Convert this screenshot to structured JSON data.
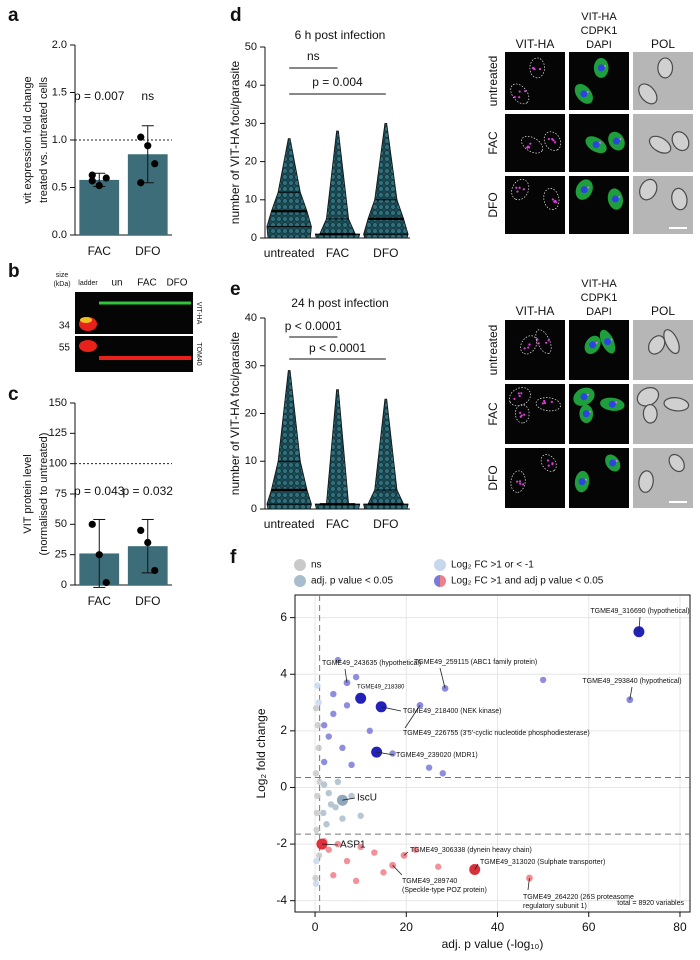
{
  "chart_data": [
    {
      "panel": "a",
      "type": "bar",
      "ylabel": [
        "vit expression fold change",
        "treated vs. untreated cells"
      ],
      "categories": [
        "FAC",
        "DFO"
      ],
      "values": [
        0.58,
        0.85
      ],
      "errors": [
        0.07,
        0.3
      ],
      "points": [
        [
          0.57,
          0.52,
          0.6,
          0.63
        ],
        [
          1.03,
          0.94,
          0.75,
          0.55
        ]
      ],
      "color": "#3d6d79",
      "ylim": [
        0,
        2
      ],
      "yticks": [
        {
          "value": 0,
          "label": "0.0"
        },
        {
          "value": 0.5,
          "label": "0.5"
        },
        {
          "value": 1,
          "label": "1.0"
        },
        {
          "value": 1.5,
          "label": "1.5"
        },
        {
          "value": 2,
          "label": "2.0"
        }
      ],
      "reference_line": 1,
      "annotations": [
        "p = 0.007",
        "ns"
      ]
    },
    {
      "panel": "b",
      "type": "blot",
      "size_label": [
        "size",
        "(kDa)"
      ],
      "lanes": [
        "ladder",
        "un",
        "FAC",
        "DFO"
      ],
      "markers": [
        "34",
        "55"
      ],
      "bands": [
        "VIT-HA",
        "TOM40"
      ]
    },
    {
      "panel": "c",
      "type": "bar",
      "ylabel": [
        "VIT protein level",
        "(normalised to untreated)"
      ],
      "categories": [
        "FAC",
        "DFO"
      ],
      "values": [
        26,
        32
      ],
      "errors": [
        28,
        22
      ],
      "points": [
        [
          50,
          25,
          2
        ],
        [
          45,
          35,
          12
        ]
      ],
      "color": "#3d6d79",
      "ylim": [
        0,
        150
      ],
      "yticks": [
        0,
        25,
        50,
        75,
        100,
        125,
        150
      ],
      "reference_line": 100,
      "annotations": [
        "p = 0.043",
        "p = 0.032"
      ]
    },
    {
      "panel": "d",
      "type": "violin",
      "title": "6 h post infection",
      "ylabel": "number of VIT-HA foci/parasite",
      "categories": [
        "untreated",
        "FAC",
        "DFO"
      ],
      "stats": [
        {
          "min": 0,
          "q1": 3,
          "median": 7,
          "q3": 12,
          "max": 26
        },
        {
          "min": 0,
          "q1": 1,
          "median": 1,
          "q3": 5,
          "max": 28
        },
        {
          "min": 0,
          "q1": 1,
          "median": 5,
          "q3": 10,
          "max": 30
        }
      ],
      "color": "#2f6f7c",
      "ylim": [
        0,
        50
      ],
      "yticks": [
        0,
        10,
        20,
        30,
        40,
        50
      ],
      "comparisons": [
        {
          "pair": [
            0,
            1
          ],
          "label": "ns"
        },
        {
          "pair": [
            0,
            2
          ],
          "label": "p = 0.004"
        }
      ],
      "image_columns": [
        "VIT-HA",
        null,
        "POL"
      ],
      "merge_channels": [
        {
          "name": "VIT-HA",
          "color": "#e03ce0"
        },
        {
          "name": "CDPK1",
          "color": "#22c84a"
        },
        {
          "name": "DAPI",
          "color": "#2a3ee0"
        }
      ],
      "image_rows": [
        "untreated",
        "FAC",
        "DFO"
      ]
    },
    {
      "panel": "e",
      "type": "violin",
      "title": "24 h post infection",
      "ylabel": "number of VIT-HA foci/parasite",
      "categories": [
        "untreated",
        "FAC",
        "DFO"
      ],
      "stats": [
        {
          "min": 0,
          "q1": 1,
          "median": 4,
          "q3": 10,
          "max": 29
        },
        {
          "min": 0,
          "q1": 1,
          "median": 1,
          "q3": 1,
          "max": 25
        },
        {
          "min": 0,
          "q1": 1,
          "median": 1,
          "q3": 4,
          "max": 23
        }
      ],
      "color": "#2f6f7c",
      "ylim": [
        0,
        40
      ],
      "yticks": [
        0,
        10,
        20,
        30,
        40
      ],
      "comparisons": [
        {
          "pair": [
            0,
            1
          ],
          "label": "p < 0.0001"
        },
        {
          "pair": [
            0,
            2
          ],
          "label": "p < 0.0001"
        }
      ],
      "image_columns": [
        "VIT-HA",
        null,
        "POL"
      ],
      "merge_channels": [
        {
          "name": "VIT-HA",
          "color": "#e03ce0"
        },
        {
          "name": "CDPK1",
          "color": "#22c84a"
        },
        {
          "name": "DAPI",
          "color": "#2a3ee0"
        }
      ],
      "image_rows": [
        "untreated",
        "FAC",
        "DFO"
      ]
    },
    {
      "panel": "f",
      "type": "scatter",
      "xlabel": "adj. p value (-log₁₀)",
      "ylabel": "Log₂ fold change",
      "note": "total = 8920 variables",
      "xlim": [
        -4.4,
        82.2
      ],
      "ylim": [
        -4.4,
        6.8
      ],
      "xticks": [
        0,
        20,
        40,
        60,
        80
      ],
      "yticks": [
        -4,
        -2,
        0,
        2,
        4,
        6
      ],
      "grid": true,
      "hlines": [
        0.35,
        -1.65
      ],
      "vline": 1,
      "series": [
        {
          "name": "ns",
          "color": "#c9c9c9",
          "x": [
            0.2,
            0.5,
            0.8,
            0.3,
            1,
            0.1,
            0.6,
            0.4,
            0.9,
            0.2
          ],
          "values": [
            0.5,
            -0.3,
            1.4,
            -1.5,
            0.2,
            -3.2,
            2.2,
            -0.9,
            -2.4,
            2.8
          ]
        },
        {
          "name": "adj. p value < 0.05",
          "color": "#a9bccb",
          "x": [
            2,
            3,
            4.5,
            6,
            2.5,
            8,
            3.5,
            1.8,
            5,
            10
          ],
          "values": [
            0.1,
            -0.2,
            -0.7,
            -1.1,
            -1.3,
            -0.3,
            -0.6,
            -0.9,
            0.2,
            -1.0
          ]
        },
        {
          "name": "Log₂ FC >1 or < -1",
          "color": "#c6d7ee",
          "x": [
            0.5,
            0.3,
            0.8,
            0.2
          ],
          "values": [
            3.6,
            -2.6,
            3.0,
            -3.4
          ]
        },
        {
          "name": "Log₂ FC >1 and adj p value < 0.05",
          "colors": [
            "#7a7ad9",
            "#f07f86"
          ],
          "x": [
            2,
            3,
            4,
            5,
            6,
            8,
            9,
            12,
            17,
            25,
            28,
            50,
            4,
            2,
            7,
            2,
            3,
            5,
            7,
            10,
            13,
            15,
            22,
            27,
            4,
            9
          ],
          "values": [
            0.9,
            1.8,
            2.6,
            4.5,
            1.4,
            0.8,
            3.9,
            2.0,
            1.2,
            0.7,
            0.5,
            3.8,
            3.3,
            2.2,
            2.9,
            -1.9,
            -2.2,
            -2.0,
            -2.6,
            -2.1,
            -2.3,
            -3.0,
            -2.2,
            -2.8,
            -3.1,
            -3.3
          ]
        }
      ],
      "labeled": [
        {
          "label": "TGME49_316690 (hypothetical)",
          "x": 71,
          "y": 5.5,
          "color": "#2222b8",
          "size": "large"
        },
        {
          "label": "TGME49_293840 (hypothetical)",
          "x": 69,
          "y": 3.1,
          "color": "#8a8ae0",
          "size": "small"
        },
        {
          "label": "TGME49_259115 (ABC1 family protein)",
          "x": 28.5,
          "y": 3.5,
          "color": "#8a8ae0",
          "size": "small"
        },
        {
          "label": "TGME49_243635 (hypothetical)",
          "x": 7,
          "y": 3.7,
          "color": "#8a8ae0",
          "size": "small"
        },
        {
          "label": "TGME49_218380",
          "x": 10,
          "y": 3.15,
          "color": "#2222b8",
          "size": "large"
        },
        {
          "label": "TGME49_218400 (NEK kinase)",
          "x": 14.5,
          "y": 2.85,
          "color": "#2222b8",
          "size": "large"
        },
        {
          "label": "TGME49_226755 (3'5'-cyclic nucleotide phosphodiesterase)",
          "x": 23,
          "y": 2.9,
          "color": "#8a8ae0",
          "size": "small"
        },
        {
          "label": "TGME49_239020 (MDR1)",
          "x": 13.5,
          "y": 1.25,
          "color": "#2222b8",
          "size": "large"
        },
        {
          "label": "IscU",
          "x": 6,
          "y": -0.45,
          "color": "#8fa8bd",
          "size": "large"
        },
        {
          "label": "ASP1",
          "x": 1.5,
          "y": -2.0,
          "color": "#e0303a",
          "size": "large"
        },
        {
          "label": "TGME49_306338 (dynein heavy chain)",
          "x": 19.5,
          "y": -2.4,
          "color": "#f28b92",
          "size": "small"
        },
        {
          "label": "TGME49_313020 (Sulphate transporter)",
          "x": 35,
          "y": -2.9,
          "color": "#d8303a",
          "size": "large"
        },
        {
          "label": [
            "TGME49_289740",
            "(Speckle-type POZ protein)"
          ],
          "x": 17,
          "y": -2.75,
          "color": "#f28b92",
          "size": "small"
        },
        {
          "label": [
            "TGME49_264220 (26S proteasome",
            "regulatory subunit 1)"
          ],
          "x": 47,
          "y": -3.2,
          "color": "#f28b92",
          "size": "small"
        }
      ]
    }
  ]
}
